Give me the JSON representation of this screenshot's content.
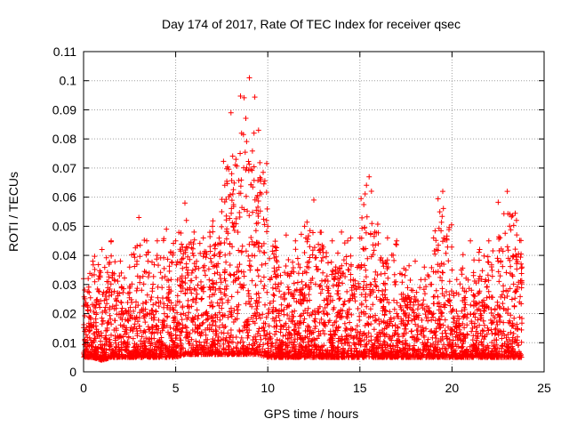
{
  "chart_data": {
    "type": "scatter",
    "title": "Day 174 of 2017, Rate Of TEC Index for receiver qsec",
    "xlabel": "GPS time / hours",
    "ylabel": "ROTI / TECUs",
    "xlim": [
      0,
      25
    ],
    "ylim": [
      0,
      0.11
    ],
    "x_ticks": [
      "0",
      "5",
      "10",
      "15",
      "20",
      "25"
    ],
    "y_ticks": [
      "0",
      "0.01",
      "0.02",
      "0.03",
      "0.04",
      "0.05",
      "0.06",
      "0.07",
      "0.08",
      "0.09",
      "0.1",
      "0.11"
    ],
    "grid": true,
    "marker": "+",
    "series_color": "#ff0000",
    "series": [
      {
        "x": [
          0.0,
          0.5,
          1.0,
          1.5,
          2.0,
          2.5,
          3.0,
          3.5,
          4.0,
          4.5,
          5.0,
          5.5,
          6.0,
          6.5,
          7.0,
          7.5,
          8.0,
          8.5,
          9.0,
          9.5,
          10.0,
          10.5,
          11.0,
          11.5,
          12.0,
          12.5,
          13.0,
          13.5,
          14.0,
          14.5,
          15.0,
          15.5,
          16.0,
          16.5,
          17.0,
          17.5,
          18.0,
          18.5,
          19.0,
          19.5,
          20.0,
          20.5,
          21.0,
          21.5,
          22.0,
          22.5,
          23.0,
          23.5,
          23.8
        ],
        "y_low": [
          0.005,
          0.005,
          0.004,
          0.005,
          0.005,
          0.005,
          0.005,
          0.005,
          0.005,
          0.005,
          0.005,
          0.006,
          0.006,
          0.006,
          0.006,
          0.006,
          0.006,
          0.006,
          0.006,
          0.006,
          0.005,
          0.005,
          0.005,
          0.005,
          0.005,
          0.005,
          0.005,
          0.005,
          0.005,
          0.005,
          0.005,
          0.005,
          0.005,
          0.005,
          0.005,
          0.005,
          0.005,
          0.005,
          0.005,
          0.005,
          0.005,
          0.005,
          0.005,
          0.005,
          0.005,
          0.005,
          0.005,
          0.005,
          0.005
        ],
        "y_high": [
          0.032,
          0.038,
          0.042,
          0.045,
          0.038,
          0.036,
          0.053,
          0.038,
          0.045,
          0.049,
          0.045,
          0.058,
          0.048,
          0.046,
          0.05,
          0.055,
          0.089,
          0.075,
          0.101,
          0.083,
          0.05,
          0.035,
          0.047,
          0.045,
          0.05,
          0.059,
          0.041,
          0.045,
          0.048,
          0.046,
          0.046,
          0.067,
          0.044,
          0.046,
          0.045,
          0.035,
          0.038,
          0.036,
          0.046,
          0.062,
          0.035,
          0.035,
          0.045,
          0.042,
          0.045,
          0.038,
          0.062,
          0.052,
          0.036
        ]
      }
    ]
  }
}
